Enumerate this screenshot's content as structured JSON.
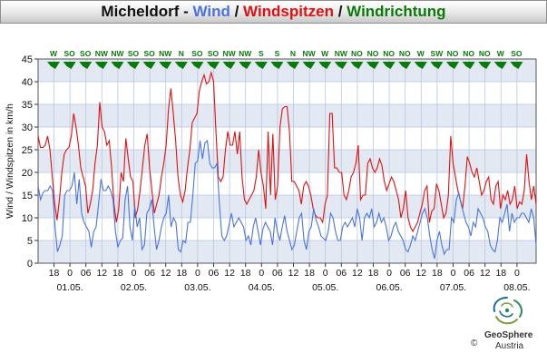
{
  "title": {
    "station": "Micheldorf",
    "sep1": " - ",
    "wind_label": "Wind",
    "sep2": " / ",
    "gust_label": "Windspitzen",
    "sep3": " / ",
    "dir_label": "Windrichtung"
  },
  "colors": {
    "wind": "#4a73e0",
    "gust": "#e01010",
    "direction": "#0a7a0a",
    "plot_bg_light": "#ffffff",
    "plot_bg_band": "#e3e9f2",
    "grid": "#b8c7e0"
  },
  "footer": {
    "brand": "GeoSphere",
    "brand_sub": "Austria",
    "copyright": "©"
  },
  "chart_data": {
    "type": "line",
    "ylabel": "Wind / Windspitzen in km/h",
    "ylim": [
      0,
      45
    ],
    "y_ticks": [
      "0",
      "5",
      "10",
      "15",
      "20",
      "25",
      "30",
      "35",
      "40",
      "45"
    ],
    "x_hour_ticks": [
      "18",
      "0",
      "06",
      "12",
      "18",
      "0",
      "06",
      "12",
      "18",
      "0",
      "06",
      "12",
      "18",
      "0",
      "06",
      "12",
      "18",
      "0",
      "06",
      "12",
      "18",
      "0",
      "06",
      "12",
      "18",
      "0",
      "06",
      "12",
      "18",
      "0"
    ],
    "x_date_labels": [
      "01.05.",
      "02.05.",
      "03.05.",
      "04.05.",
      "05.05.",
      "06.05.",
      "07.05.",
      "08.05."
    ],
    "direction_labels": [
      "W",
      "SO",
      "SO",
      "NW",
      "NW",
      "SO",
      "SO",
      "NW",
      "N",
      "SO",
      "SO",
      "NW",
      "NW",
      "S",
      "S",
      "N",
      "NW",
      "W",
      "NW",
      "NO",
      "NO",
      "NO",
      "NO",
      "W",
      "SW",
      "NO",
      "NO",
      "NO",
      "W",
      "SO"
    ],
    "series": [
      {
        "key": "gust",
        "values": [
          28,
          25.5,
          25.5,
          26,
          28,
          25,
          19,
          13,
          9.5,
          14,
          20,
          24,
          25,
          25.5,
          28,
          33,
          30,
          26,
          21,
          19,
          17,
          11,
          13,
          16,
          22,
          26,
          35.5,
          30,
          29,
          26,
          27,
          21,
          13,
          9,
          12,
          20,
          18,
          27.5,
          23,
          19,
          18,
          10,
          12,
          16,
          21,
          26,
          28.5,
          21,
          16,
          11,
          13,
          15,
          19,
          22,
          26,
          34,
          38.5,
          33,
          27,
          19,
          15,
          13.5,
          16,
          21,
          25,
          31,
          32,
          33,
          38,
          40,
          41.5,
          39.5,
          40,
          42,
          40,
          29,
          19,
          18,
          19,
          25,
          29,
          26,
          26,
          29,
          24,
          29,
          19,
          14,
          13,
          14,
          15,
          16,
          19,
          25,
          20,
          17,
          12,
          29,
          15,
          28.5,
          14,
          17,
          30,
          34,
          34.5,
          34.5,
          29,
          18,
          18,
          17,
          16,
          13,
          17,
          18,
          17,
          15,
          12,
          10.5,
          10,
          10,
          9,
          13,
          15,
          33,
          33,
          21,
          21,
          20,
          20,
          15,
          14,
          16,
          19,
          20,
          22,
          26,
          14,
          15,
          15,
          22,
          23,
          21,
          20,
          21,
          23,
          21.5,
          18,
          16,
          17.5,
          19,
          18,
          16,
          14,
          10,
          12,
          16,
          10,
          8,
          7,
          8,
          9,
          11,
          13,
          16,
          17,
          9,
          11.5,
          12,
          17.5,
          16,
          13,
          10,
          11,
          15,
          28,
          22,
          19,
          16,
          14,
          12,
          17,
          23.5,
          22,
          20,
          19,
          21,
          18,
          15,
          16,
          18,
          19,
          14,
          13,
          17,
          18,
          12,
          15,
          14,
          16,
          13,
          14,
          17,
          12,
          13.5,
          13,
          16,
          24,
          18,
          14,
          17,
          13
        ]
      },
      {
        "key": "wind",
        "values": [
          17,
          14,
          15.5,
          16,
          16,
          17,
          16,
          8,
          2.5,
          4,
          6,
          15,
          16,
          16,
          17,
          20,
          13,
          18.5,
          11,
          9,
          8,
          7,
          3.5,
          7,
          8,
          13,
          18.5,
          16,
          16,
          17,
          16,
          14,
          7,
          3.5,
          5,
          5.5,
          14,
          17,
          8,
          5,
          12.5,
          8,
          10,
          3,
          4,
          11,
          12,
          14,
          8,
          3,
          5,
          8,
          10,
          11,
          15,
          8,
          10,
          9,
          3,
          2.5,
          5,
          4.5,
          9,
          9,
          15,
          22,
          22.5,
          27,
          23,
          26.5,
          27,
          22,
          21,
          21,
          22,
          13,
          6,
          5,
          6,
          8.5,
          11,
          8,
          9,
          10,
          9,
          8,
          5,
          6,
          4,
          8,
          10,
          7,
          4,
          7.5,
          9,
          8,
          7,
          4,
          10,
          7,
          5,
          8,
          10.5,
          7,
          5,
          3,
          4,
          7,
          10,
          11,
          5,
          3,
          7,
          8,
          12,
          9.5,
          8,
          6,
          5.5,
          5,
          7,
          11,
          10,
          7,
          5,
          5,
          8,
          9,
          8,
          9,
          10,
          8,
          12,
          10,
          5,
          10,
          11,
          10,
          12,
          8,
          9,
          11,
          9,
          10,
          8,
          5,
          6,
          8,
          9,
          7,
          6,
          5,
          3,
          2.5,
          4,
          6,
          5,
          7,
          9,
          11,
          12,
          10,
          6,
          3,
          1,
          5,
          7,
          4,
          2,
          3,
          3,
          10,
          9,
          14,
          15.5,
          13,
          11,
          9,
          8,
          6,
          9,
          8,
          12,
          11,
          10,
          8,
          7,
          4,
          3,
          2.5,
          5,
          10,
          9,
          11,
          13,
          7,
          11,
          9,
          10,
          10,
          11,
          11,
          10,
          9,
          12,
          10,
          4
        ]
      }
    ]
  }
}
